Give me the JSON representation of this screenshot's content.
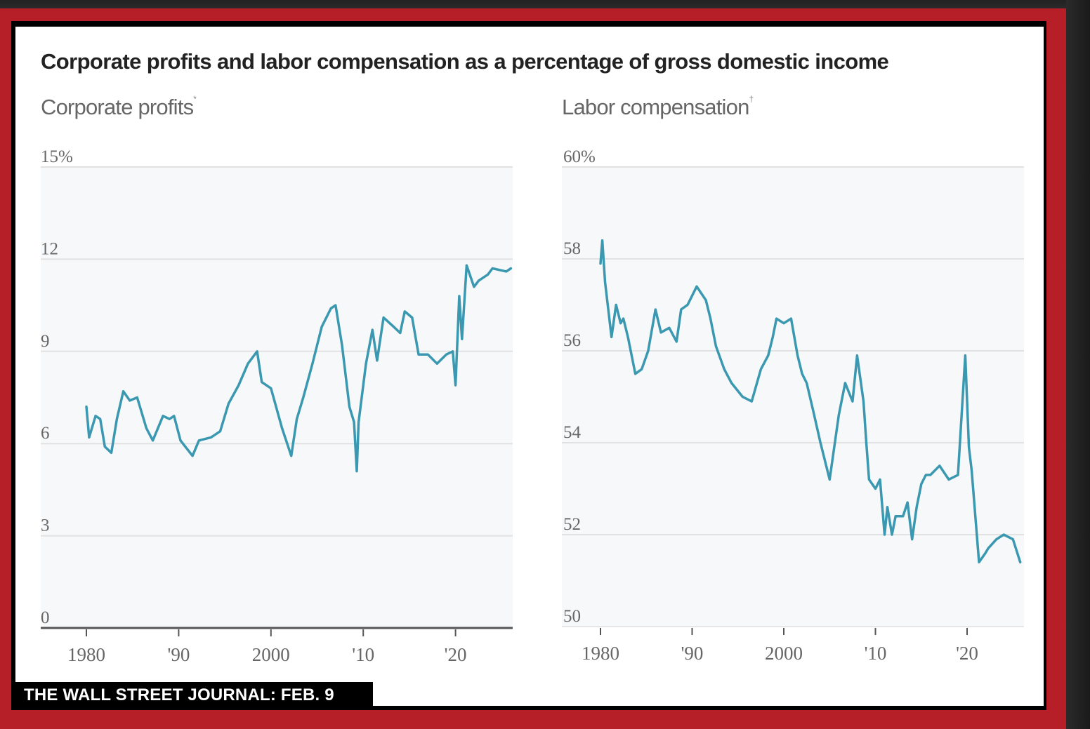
{
  "colors": {
    "frame_red": "#b61f27",
    "line_teal": "#3a98b0",
    "plot_bg": "#f7f8fa",
    "grid": "#e2e2e2"
  },
  "header": {
    "title": "Corporate profits and labor compensation as a percentage of gross domestic income"
  },
  "source": {
    "label": "THE WALL STREET JOURNAL: FEB. 9"
  },
  "chart_data": [
    {
      "type": "line",
      "title": "Corporate profits",
      "title_footnote": "*",
      "xlabel": "",
      "ylabel": "",
      "y_ticks": [
        "15%",
        "12",
        "9",
        "6",
        "3",
        "0"
      ],
      "y_tick_values": [
        15,
        12,
        9,
        6,
        3,
        0
      ],
      "ylim": [
        0,
        15
      ],
      "x_ticks": [
        "1980",
        "'90",
        "2000",
        "'10",
        "'20"
      ],
      "x_tick_values": [
        1980,
        1990,
        2000,
        2010,
        2020
      ],
      "xlim": [
        1975,
        2026.5
      ],
      "grid": true,
      "legend": "none",
      "series": [
        {
          "name": "Corporate profits",
          "x": [
            1980,
            1980.3,
            1981,
            1981.5,
            1982,
            1982.7,
            1983.3,
            1984,
            1984.7,
            1985.5,
            1986.5,
            1987.2,
            1988.3,
            1989,
            1989.5,
            1990.2,
            1991.5,
            1992.2,
            1993.5,
            1994.5,
            1995.4,
            1996.5,
            1997.5,
            1998.5,
            1999,
            2000,
            2001.2,
            2002.2,
            2002.8,
            2003.5,
            2004.5,
            2005.5,
            2006.5,
            2007,
            2007.7,
            2008.5,
            2009,
            2009.3,
            2009.5,
            2010.3,
            2011,
            2011.5,
            2012.2,
            2013.3,
            2014,
            2014.5,
            2015.3,
            2016,
            2017,
            2018,
            2019,
            2019.7,
            2020,
            2020.4,
            2020.7,
            2021.2,
            2022,
            2022.5,
            2023.5,
            2024,
            2025.5,
            2026
          ],
          "values": [
            7.2,
            6.2,
            6.9,
            6.8,
            5.9,
            5.7,
            6.8,
            7.7,
            7.4,
            7.5,
            6.5,
            6.1,
            6.9,
            6.8,
            6.9,
            6.1,
            5.6,
            6.1,
            6.2,
            6.4,
            7.3,
            7.9,
            8.6,
            9.0,
            8.0,
            7.8,
            6.5,
            5.6,
            6.8,
            7.5,
            8.6,
            9.8,
            10.4,
            10.5,
            9.2,
            7.2,
            6.7,
            5.1,
            6.7,
            8.6,
            9.7,
            8.7,
            10.1,
            9.8,
            9.6,
            10.3,
            10.1,
            8.9,
            8.9,
            8.6,
            8.9,
            9.0,
            7.9,
            10.8,
            9.4,
            11.8,
            11.1,
            11.3,
            11.5,
            11.7,
            11.6,
            11.7
          ]
        }
      ]
    },
    {
      "type": "line",
      "title": "Labor compensation",
      "title_footnote": "†",
      "xlabel": "",
      "ylabel": "",
      "y_ticks": [
        "60%",
        "58",
        "56",
        "54",
        "52",
        "50"
      ],
      "y_tick_values": [
        60,
        58,
        56,
        54,
        52,
        50
      ],
      "ylim": [
        50,
        60
      ],
      "x_ticks": [
        "1980",
        "'90",
        "2000",
        "'10",
        "'20"
      ],
      "x_tick_values": [
        1980,
        1990,
        2000,
        2010,
        2020
      ],
      "xlim": [
        1976,
        2026.5
      ],
      "grid": true,
      "legend": "none",
      "series": [
        {
          "name": "Labor compensation",
          "x": [
            1980,
            1980.2,
            1980.5,
            1981.2,
            1981.7,
            1982.2,
            1982.5,
            1983,
            1983.8,
            1984.5,
            1985.2,
            1986,
            1986.6,
            1987.5,
            1988.3,
            1988.8,
            1989.5,
            1990.5,
            1991.5,
            1992,
            1992.6,
            1993.5,
            1994.3,
            1995.5,
            1996.5,
            1997.5,
            1998.3,
            1998.8,
            1999.2,
            2000,
            2000.8,
            2001.5,
            2002,
            2002.5,
            2003.2,
            2004,
            2005,
            2006,
            2006.7,
            2007.5,
            2008,
            2008.7,
            2009,
            2009.3,
            2010,
            2010.5,
            2011,
            2011.3,
            2011.8,
            2012.2,
            2013,
            2013.5,
            2014,
            2014.5,
            2015,
            2015.5,
            2016,
            2017,
            2018,
            2019,
            2019.8,
            2020.2,
            2020.5,
            2021.3,
            2022,
            2022.3,
            2023.2,
            2024,
            2025,
            2025.8
          ],
          "values": [
            57.9,
            58.4,
            57.5,
            56.3,
            57.0,
            56.6,
            56.7,
            56.3,
            55.5,
            55.6,
            56.0,
            56.9,
            56.4,
            56.5,
            56.2,
            56.9,
            57.0,
            57.4,
            57.1,
            56.7,
            56.1,
            55.6,
            55.3,
            55.0,
            54.9,
            55.6,
            55.9,
            56.3,
            56.7,
            56.6,
            56.7,
            55.9,
            55.5,
            55.3,
            54.7,
            54.0,
            53.2,
            54.6,
            55.3,
            54.9,
            55.9,
            54.9,
            54.0,
            53.2,
            53.0,
            53.2,
            52.0,
            52.6,
            52.0,
            52.4,
            52.4,
            52.7,
            51.9,
            52.6,
            53.1,
            53.3,
            53.3,
            53.5,
            53.2,
            53.3,
            55.9,
            53.9,
            53.4,
            51.4,
            51.6,
            51.7,
            51.9,
            52.0,
            51.9,
            51.4
          ]
        }
      ]
    }
  ]
}
